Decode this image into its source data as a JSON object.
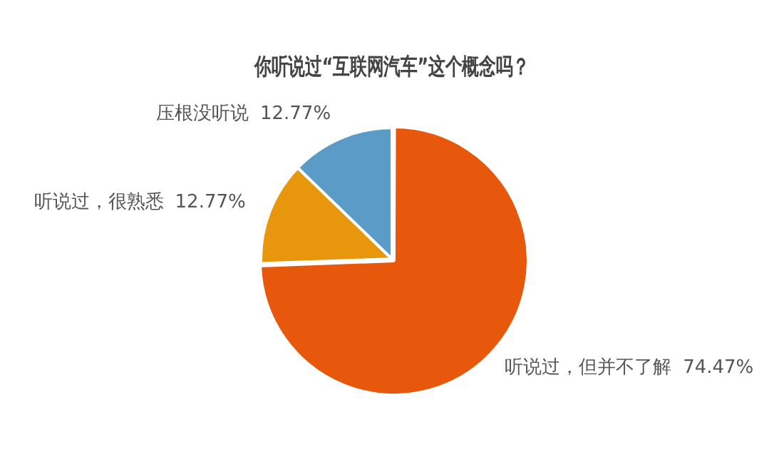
{
  "chart_data": {
    "type": "pie",
    "title": "你听说过“互联网汽车”这个概念吗？",
    "categories": [
      "听说过，但并不了解",
      "听说过，很熟悉",
      "压根没听说"
    ],
    "values": [
      74.47,
      12.77,
      12.77
    ],
    "value_labels": [
      "74.47%",
      "12.77%",
      "12.77%"
    ],
    "colors": [
      "#e8580c",
      "#e8960c",
      "#5b9bc8"
    ],
    "legend": false
  }
}
